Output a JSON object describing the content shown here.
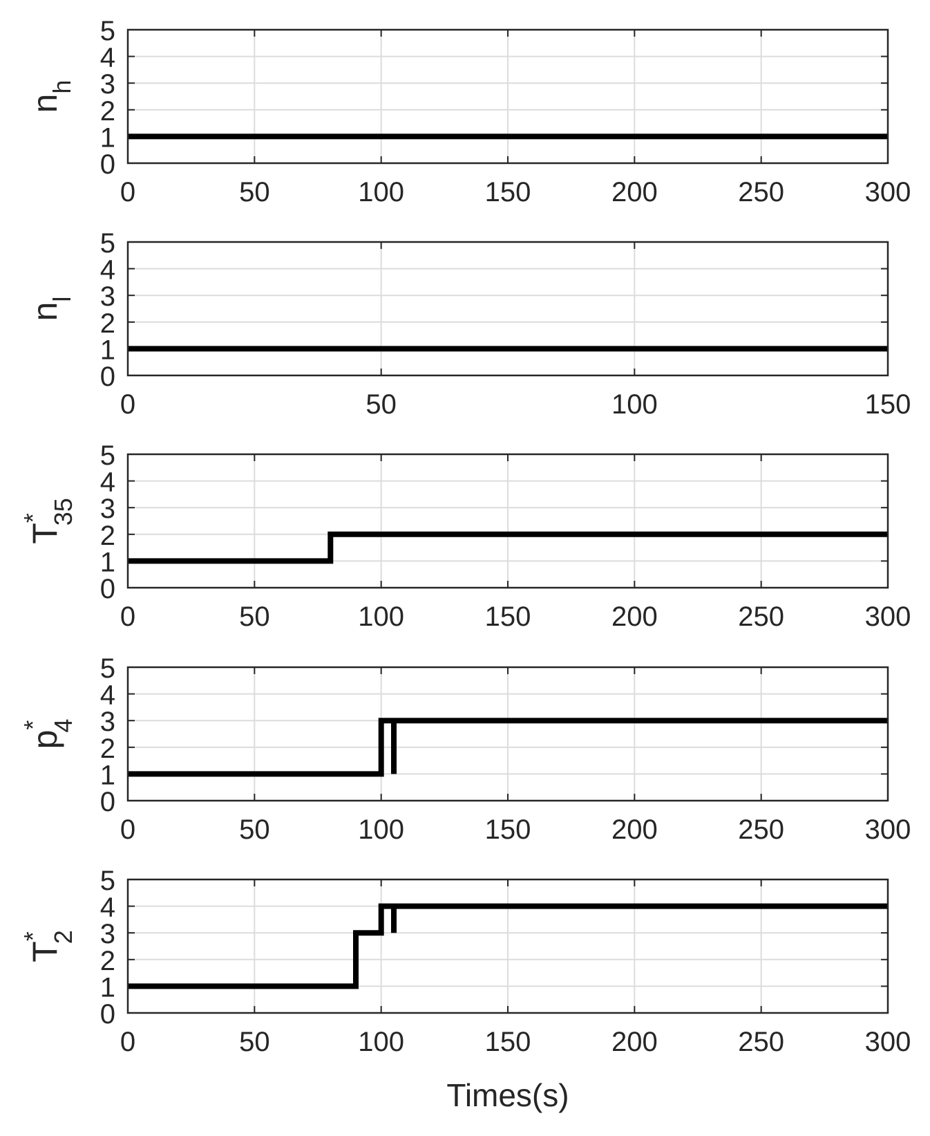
{
  "chart_data": [
    {
      "type": "line",
      "ylabel": {
        "base": "n",
        "sub": "h",
        "sup": ""
      },
      "xlim": [
        0,
        300
      ],
      "ylim": [
        0,
        5
      ],
      "xticks": [
        0,
        50,
        100,
        150,
        200,
        250,
        300
      ],
      "yticks": [
        0,
        1,
        2,
        3,
        4,
        5
      ],
      "grid": true,
      "series": [
        {
          "color": "#000000",
          "segments": [
            {
              "x": [
                0,
                300
              ],
              "y": [
                1,
                1
              ]
            }
          ]
        }
      ]
    },
    {
      "type": "line",
      "ylabel": {
        "base": "n",
        "sub": "l",
        "sup": ""
      },
      "xlim": [
        0,
        150
      ],
      "ylim": [
        0,
        5
      ],
      "xticks": [
        0,
        50,
        100,
        150
      ],
      "yticks": [
        0,
        1,
        2,
        3,
        4,
        5
      ],
      "grid": true,
      "series": [
        {
          "color": "#000000",
          "segments": [
            {
              "x": [
                0,
                150
              ],
              "y": [
                1,
                1
              ]
            }
          ]
        }
      ]
    },
    {
      "type": "line",
      "ylabel": {
        "base": "T",
        "sub": "35",
        "sup": "*"
      },
      "xlim": [
        0,
        300
      ],
      "ylim": [
        0,
        5
      ],
      "xticks": [
        0,
        50,
        100,
        150,
        200,
        250,
        300
      ],
      "yticks": [
        0,
        1,
        2,
        3,
        4,
        5
      ],
      "grid": true,
      "series": [
        {
          "color": "#000000",
          "segments": [
            {
              "x": [
                0,
                80,
                80,
                300
              ],
              "y": [
                1,
                1,
                2,
                2
              ]
            }
          ]
        }
      ]
    },
    {
      "type": "line",
      "ylabel": {
        "base": "p",
        "sub": "4",
        "sup": "*"
      },
      "xlim": [
        0,
        300
      ],
      "ylim": [
        0,
        5
      ],
      "xticks": [
        0,
        50,
        100,
        150,
        200,
        250,
        300
      ],
      "yticks": [
        0,
        1,
        2,
        3,
        4,
        5
      ],
      "grid": true,
      "series": [
        {
          "color": "#000000",
          "segments": [
            {
              "x": [
                0,
                100,
                100,
                300
              ],
              "y": [
                1,
                1,
                3,
                3
              ]
            },
            {
              "x": [
                105,
                105
              ],
              "y": [
                1,
                3
              ]
            }
          ]
        }
      ]
    },
    {
      "type": "line",
      "ylabel": {
        "base": "T",
        "sub": "2",
        "sup": "*"
      },
      "xlabel": "Times(s)",
      "xlim": [
        0,
        300
      ],
      "ylim": [
        0,
        5
      ],
      "xticks": [
        0,
        50,
        100,
        150,
        200,
        250,
        300
      ],
      "yticks": [
        0,
        1,
        2,
        3,
        4,
        5
      ],
      "grid": true,
      "series": [
        {
          "color": "#000000",
          "segments": [
            {
              "x": [
                0,
                90,
                90,
                100,
                100,
                300
              ],
              "y": [
                1,
                1,
                3,
                3,
                4,
                4
              ]
            },
            {
              "x": [
                105,
                105
              ],
              "y": [
                3,
                4
              ]
            }
          ]
        }
      ]
    }
  ]
}
